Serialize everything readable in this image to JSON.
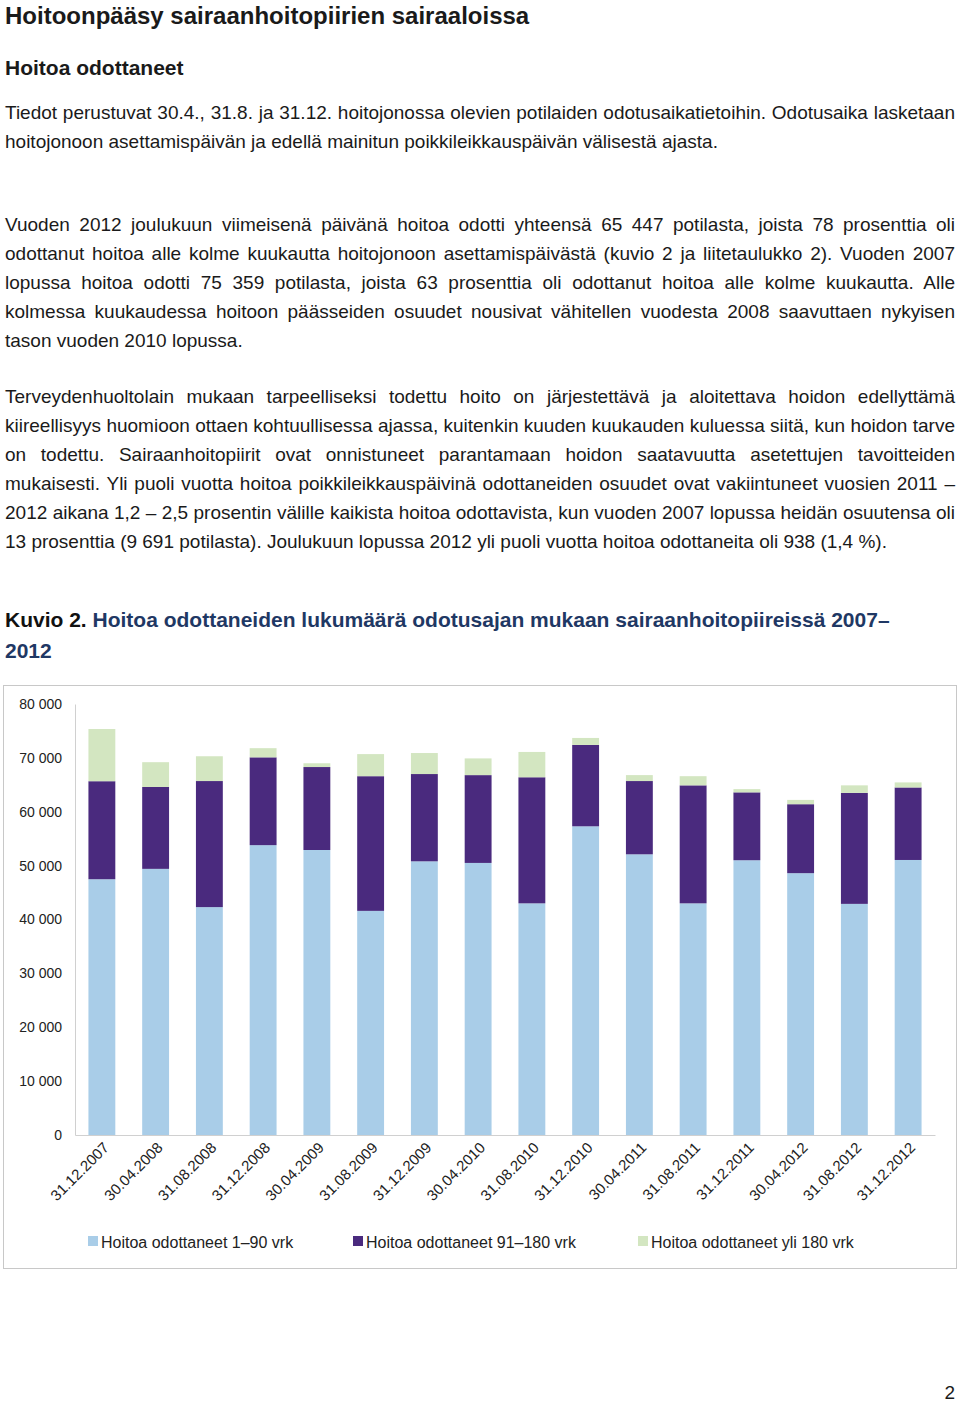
{
  "document": {
    "title": "Hoitoonpääsy sairaanhoitopiirien sairaaloissa",
    "subtitle": "Hoitoa odottaneet",
    "paragraphs": [
      "Tiedot perustuvat 30.4., 31.8. ja 31.12. hoitojonossa olevien potilaiden odotusaikatietoihin. Odotusaika lasketaan hoitojonoon asettamispäivän ja edellä mainitun poikkileikkauspäivän välisestä ajasta.",
      "Vuoden 2012 joulukuun viimeisenä päivänä hoitoa odotti yhteensä 65 447 potilasta, joista 78 prosenttia oli odottanut hoitoa alle kolme kuukautta hoitojonoon asettamispäivästä (kuvio 2 ja liitetaulukko 2). Vuoden 2007 lopussa hoitoa odotti 75 359 potilasta, joista 63 prosenttia oli odottanut hoitoa alle kolme kuukautta. Alle kolmessa kuukaudessa hoitoon päässeiden osuudet nousivat vähitellen vuodesta 2008 saavuttaen nykyisen tason vuoden 2010 lopussa.",
      "Terveydenhuoltolain mukaan tarpeelliseksi todettu hoito on järjestettävä ja aloitettava hoidon edellyttämä kiireellisyys huomioon ottaen kohtuullisessa ajassa, kuitenkin kuuden kuukauden kuluessa siitä, kun hoidon tarve on todettu. Sairaanhoitopiirit ovat onnistuneet parantamaan hoidon saatavuutta asetettujen tavoitteiden mukaisesti. Yli puoli vuotta hoitoa poikkileikkauspäivinä odottaneiden osuudet ovat vakiintuneet vuosien 2011 – 2012 aikana 1,2 – 2,5 prosentin välille kaikista hoitoa odottavista, kun vuoden 2007 lopussa heidän osuutensa oli 13 prosenttia (9 691 potilasta). Joulukuun lopussa 2012 yli puoli vuotta hoitoa odottaneita oli 938 (1,4 %)."
    ],
    "figure_label": "Kuvio 2.",
    "page_number": 2
  },
  "chart_data": {
    "type": "bar",
    "stacked": true,
    "title": "Hoitoa odottaneiden lukumäärä odotusajan mukaan sairaanhoitopiireissä 2007–2012",
    "categories": [
      "31.12.2007",
      "30.04.2008",
      "31.08.2008",
      "31.12.2008",
      "30.04.2009",
      "31.08.2009",
      "31.12.2009",
      "30.04.2010",
      "31.08.2010",
      "31.12.2010",
      "30.04.2011",
      "31.08.2011",
      "31.12.2011",
      "30.04.2012",
      "31.08.2012",
      "31.12.2012"
    ],
    "series": [
      {
        "name": "Hoitoa odottaneet 1–90 vrk",
        "color": "#a9cde8",
        "values": [
          47476,
          49400,
          42300,
          53800,
          52900,
          41600,
          50800,
          50500,
          43000,
          57300,
          52100,
          43000,
          51000,
          48600,
          42900,
          51049
        ]
      },
      {
        "name": "Hoitoa odottaneet 91–180 vrk",
        "color": "#4a2a7e",
        "values": [
          18192,
          15200,
          23400,
          16300,
          15400,
          25000,
          16200,
          16300,
          23400,
          15100,
          13600,
          21900,
          12600,
          12800,
          20600,
          13460
        ]
      },
      {
        "name": "Hoitoa odottaneet yli 180 vrk",
        "color": "#d3e6c1",
        "values": [
          9691,
          4600,
          4600,
          1700,
          700,
          4100,
          3900,
          3100,
          4700,
          1300,
          1100,
          1700,
          600,
          800,
          1400,
          938
        ]
      }
    ],
    "ylim": [
      0,
      80000
    ],
    "yticks": [
      0,
      {
        "value": 10000,
        "label": "10 000"
      },
      {
        "value": 20000,
        "label": "20 000"
      },
      {
        "value": 30000,
        "label": "30 000"
      },
      {
        "value": 40000,
        "label": "40 000"
      },
      {
        "value": 50000,
        "label": "50 000"
      },
      {
        "value": 60000,
        "label": "60 000"
      },
      {
        "value": 70000,
        "label": "70 000"
      },
      {
        "value": 80000,
        "label": "80 000"
      }
    ],
    "grid": false,
    "legend": "bottom"
  }
}
